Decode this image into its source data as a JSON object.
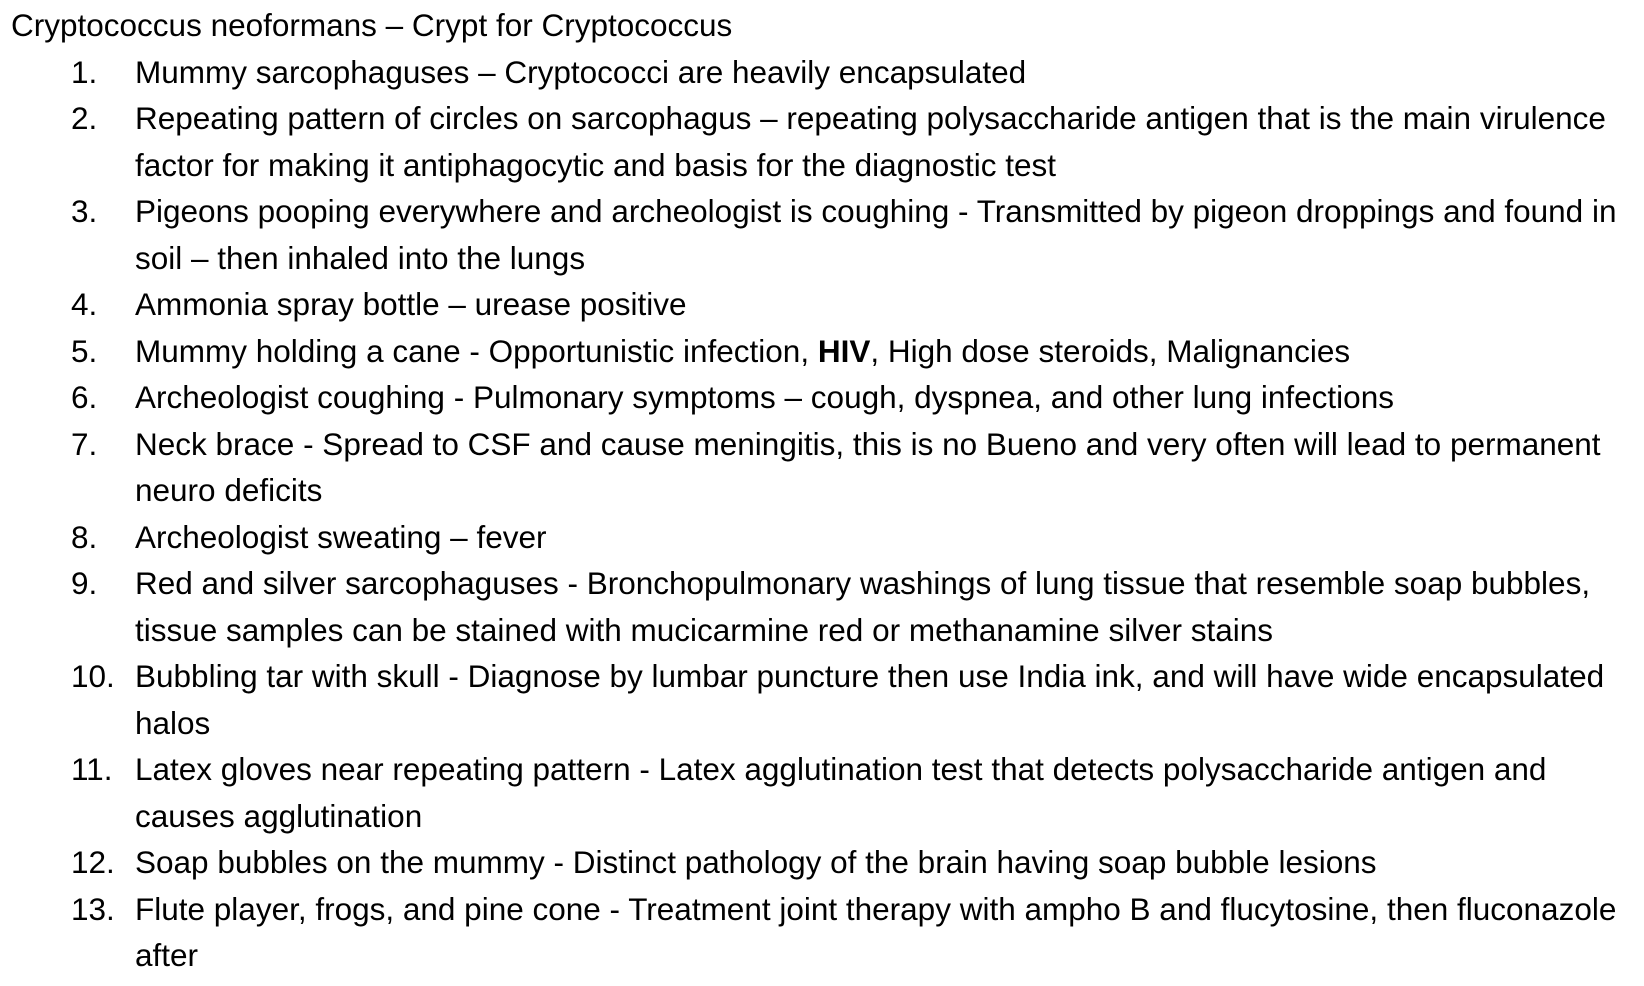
{
  "document": {
    "title": "Cryptococcus neoformans – Crypt for Cryptococcus",
    "items": [
      {
        "number": "1.",
        "text": "Mummy sarcophaguses – Cryptococci are heavily encapsulated"
      },
      {
        "number": "2.",
        "text": "Repeating pattern of circles on sarcophagus – repeating polysaccharide antigen that is the main virulence factor for making it antiphagocytic and basis for the diagnostic test"
      },
      {
        "number": "3.",
        "text": "Pigeons pooping everywhere and archeologist is coughing - Transmitted by pigeon droppings and found in soil – then inhaled into the lungs"
      },
      {
        "number": "4.",
        "text": "Ammonia spray bottle – urease positive"
      },
      {
        "number": "5.",
        "text_before": "Mummy holding a cane - Opportunistic infection, ",
        "text_bold": "HIV",
        "text_after": ", High dose steroids, Malignancies"
      },
      {
        "number": "6.",
        "text": "Archeologist coughing - Pulmonary symptoms – cough, dyspnea, and other lung infections"
      },
      {
        "number": "7.",
        "text": "Neck brace - Spread to CSF and cause meningitis, this is no Bueno and very often will lead to permanent neuro deficits"
      },
      {
        "number": "8.",
        "text": "Archeologist sweating – fever"
      },
      {
        "number": "9.",
        "text": "Red and silver sarcophaguses  - Bronchopulmonary washings of lung tissue that resemble soap bubbles, tissue samples can be stained with mucicarmine red or methanamine silver stains"
      },
      {
        "number": "10.",
        "text": "Bubbling tar with skull - Diagnose by lumbar puncture then use India ink, and will have wide encapsulated halos"
      },
      {
        "number": "11.",
        "text": "Latex gloves near repeating pattern - Latex agglutination test that detects polysaccharide antigen and causes agglutination"
      },
      {
        "number": "12.",
        "text": "Soap bubbles on the mummy - Distinct pathology of the brain having soap bubble lesions"
      },
      {
        "number": "13.",
        "text": "Flute player, frogs, and pine cone - Treatment joint therapy with ampho B and flucytosine, then fluconazole after"
      }
    ]
  }
}
